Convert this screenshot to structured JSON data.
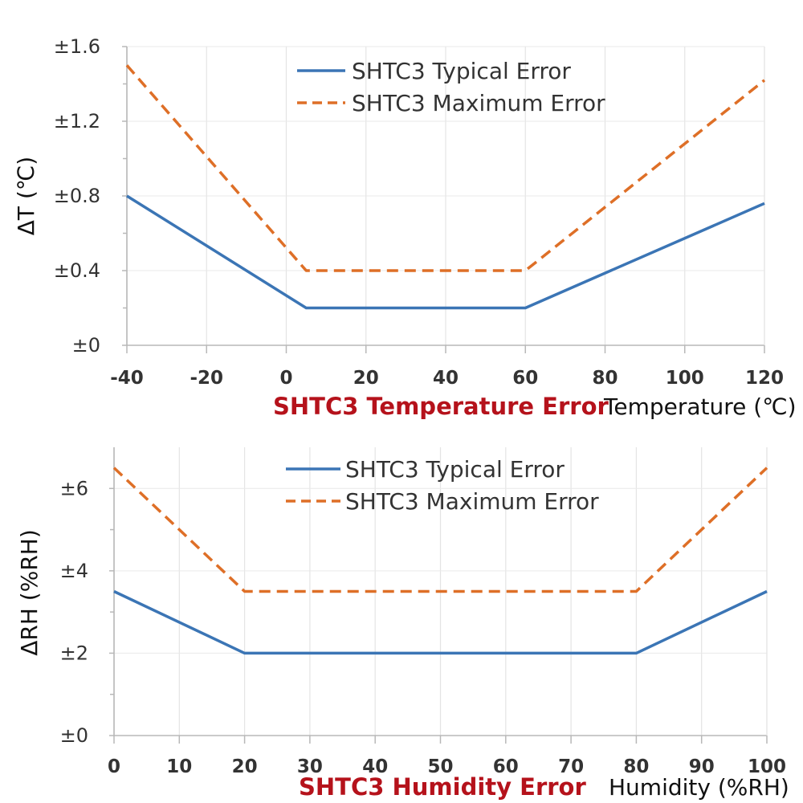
{
  "colors": {
    "typical": "#3b75b5",
    "maximum": "#de6f27",
    "title": "#b5121b"
  },
  "chart_data": [
    {
      "type": "line",
      "title": "SHTC3 Temperature Error",
      "xlabel": "Temperature (℃)",
      "ylabel": "ΔT (℃)",
      "xlim": [
        -40,
        120
      ],
      "ylim": [
        0,
        1.6
      ],
      "x_ticks": [
        -40,
        -20,
        0,
        20,
        40,
        60,
        80,
        100,
        120
      ],
      "x_tick_labels": [
        "-40",
        "-20",
        "0",
        "20",
        "40",
        "60",
        "80",
        "100",
        "120"
      ],
      "y_ticks": [
        0,
        0.4,
        0.8,
        1.2,
        1.6
      ],
      "y_tick_labels": [
        "±0",
        "±0.4",
        "±0.8",
        "±1.2",
        "±1.6"
      ],
      "grid": true,
      "legend_position": "top-center",
      "series": [
        {
          "name": "SHTC3 Typical Error",
          "style": "solid",
          "color": "#3b75b5",
          "x": [
            -40,
            5,
            60,
            120
          ],
          "y": [
            0.8,
            0.2,
            0.2,
            0.76
          ]
        },
        {
          "name": "SHTC3 Maximum Error",
          "style": "dashed",
          "color": "#de6f27",
          "x": [
            -40,
            5,
            60,
            120
          ],
          "y": [
            1.5,
            0.4,
            0.4,
            1.42
          ]
        }
      ]
    },
    {
      "type": "line",
      "title": "SHTC3 Humidity Error",
      "xlabel": "Humidity (%RH)",
      "ylabel": "ΔRH (%RH)",
      "xlim": [
        0,
        100
      ],
      "ylim": [
        0,
        7
      ],
      "x_ticks": [
        0,
        10,
        20,
        30,
        40,
        50,
        60,
        70,
        80,
        90,
        100
      ],
      "x_tick_labels": [
        "0",
        "10",
        "20",
        "30",
        "40",
        "50",
        "60",
        "70",
        "80",
        "90",
        "100"
      ],
      "y_ticks": [
        0,
        2,
        4,
        6
      ],
      "y_tick_labels": [
        "±0",
        "±2",
        "±4",
        "±6"
      ],
      "grid": true,
      "legend_position": "top-center",
      "series": [
        {
          "name": "SHTC3 Typical Error",
          "style": "solid",
          "color": "#3b75b5",
          "x": [
            0,
            20,
            80,
            100
          ],
          "y": [
            3.5,
            2,
            2,
            3.5
          ]
        },
        {
          "name": "SHTC3 Maximum Error",
          "style": "dashed",
          "color": "#de6f27",
          "x": [
            0,
            20,
            80,
            100
          ],
          "y": [
            6.5,
            3.5,
            3.5,
            6.5
          ]
        }
      ]
    }
  ]
}
